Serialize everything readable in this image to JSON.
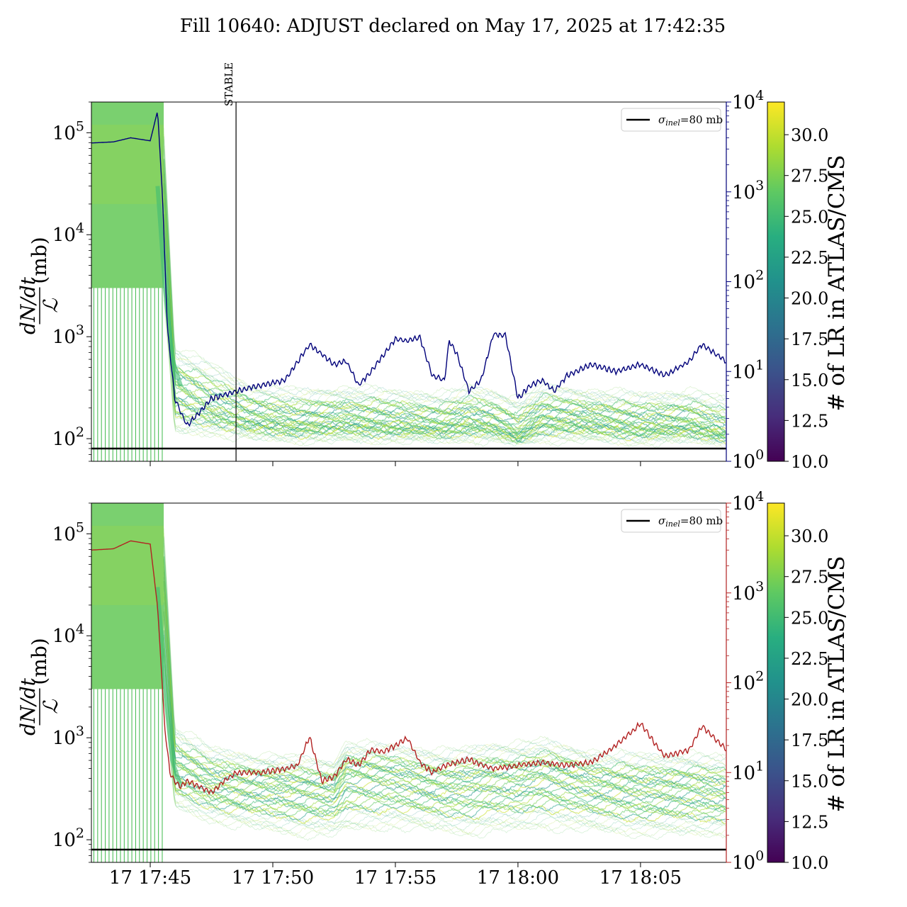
{
  "title": "Fill 10640: ADJUST declared on May 17, 2025 at 17:42:35",
  "colors": {
    "top_rate_line": "#00007a",
    "bottom_rate_line": "#b22222",
    "sigma_line": "#000000",
    "band_base": "#5cc85a",
    "band_accent": "#c8e020"
  },
  "chart_data": [
    {
      "type": "line",
      "panel": "top",
      "ylabel": "dN/dt / ℒ (mb)",
      "yscale": "log",
      "ylim": [
        60,
        200000
      ],
      "y_ticks": [
        "10^2",
        "10^3",
        "10^4",
        "10^5"
      ],
      "y2scale": "log",
      "y2lim": [
        1,
        10000
      ],
      "y2_ticks": [
        "10^0",
        "10^1",
        "10^2",
        "10^3",
        "10^4"
      ],
      "y2_color": "#00007a",
      "x_ticks": [
        "17 17:45",
        "17 17:50",
        "17 17:55",
        "17 18:00",
        "17 18:05"
      ],
      "xlim_minutes": [
        -2.4,
        23.5
      ],
      "x_tick_minutes": [
        0,
        5,
        10,
        15,
        20
      ],
      "annotation": {
        "text": "STABLE",
        "x_minutes": 3.5
      },
      "legend": {
        "label": "σ_inel=80 mb",
        "position": "top-right"
      },
      "sigma_inel_mb": 80,
      "series": [
        {
          "axis": "right",
          "x_minutes": [
            -2.4,
            -1.5,
            -0.8,
            0.0,
            0.3,
            0.5,
            0.7,
            1.0,
            1.5,
            2.0,
            2.5,
            3.5,
            4.5,
            5.5,
            6.5,
            7.5,
            8.0,
            8.3,
            8.5,
            9.0,
            9.5,
            10.0,
            10.5,
            11.0,
            11.5,
            12.0,
            12.2,
            12.5,
            13.0,
            13.5,
            14.0,
            14.5,
            15.0,
            15.5,
            16.0,
            16.5,
            17.0,
            18.0,
            19.0,
            20.0,
            21.0,
            22.0,
            22.5,
            23.5
          ],
          "values": [
            3500,
            3600,
            4000,
            3700,
            8000,
            900,
            30,
            5,
            2.5,
            3.5,
            5,
            6,
            7,
            8,
            20,
            12,
            13,
            9,
            7,
            10,
            15,
            23,
            22,
            24,
            9,
            8,
            22,
            16,
            6,
            8,
            26,
            25,
            5,
            7,
            8,
            6,
            9,
            12,
            10,
            12,
            9,
            13,
            20,
            13
          ]
        }
      ],
      "bands": {
        "colorbar_label": "# of LR in ATLAS/CMS",
        "colorbar_range": [
          10,
          32
        ],
        "colorbar_ticks": [
          "10.0",
          "12.5",
          "15.0",
          "17.5",
          "20.0",
          "22.5",
          "25.0",
          "27.5",
          "30.0"
        ],
        "x_minutes": [
          -2.4,
          0.5,
          1.0,
          2.5,
          4.0,
          6.0,
          8.0,
          10.0,
          12.0,
          13.0,
          14.0,
          15.0,
          16.0,
          18.0,
          20.0,
          22.0,
          23.5
        ],
        "median": [
          40000,
          40000,
          300,
          200,
          160,
          140,
          150,
          140,
          135,
          150,
          140,
          110,
          160,
          150,
          135,
          140,
          115
        ],
        "low": [
          3000,
          3000,
          110,
          110,
          100,
          95,
          95,
          95,
          95,
          95,
          95,
          90,
          95,
          95,
          90,
          95,
          90
        ],
        "high": [
          200000,
          200000,
          800,
          550,
          350,
          300,
          320,
          300,
          280,
          330,
          300,
          250,
          330,
          300,
          280,
          300,
          250
        ]
      }
    },
    {
      "type": "line",
      "panel": "bottom",
      "ylabel": "dN/dt / ℒ (mb)",
      "yscale": "log",
      "ylim": [
        60,
        200000
      ],
      "y_ticks": [
        "10^2",
        "10^3",
        "10^4",
        "10^5"
      ],
      "y2scale": "log",
      "y2lim": [
        1,
        10000
      ],
      "y2_ticks": [
        "10^0",
        "10^1",
        "10^2",
        "10^3",
        "10^4"
      ],
      "y2_color": "#b22222",
      "x_ticks": [
        "17 17:45",
        "17 17:50",
        "17 17:55",
        "17 18:00",
        "17 18:05"
      ],
      "xlim_minutes": [
        -2.4,
        23.5
      ],
      "x_tick_minutes": [
        0,
        5,
        10,
        15,
        20
      ],
      "legend": {
        "label": "σ_inel=80 mb",
        "position": "top-right"
      },
      "sigma_inel_mb": 80,
      "series": [
        {
          "axis": "right",
          "x_minutes": [
            -2.4,
            -1.5,
            -0.8,
            0.0,
            0.3,
            0.6,
            0.8,
            1.0,
            1.2,
            1.5,
            2.0,
            2.5,
            3.0,
            3.5,
            4.5,
            5.5,
            6.0,
            6.5,
            7.0,
            7.5,
            8.0,
            8.5,
            9.0,
            9.5,
            10.0,
            10.5,
            11.0,
            11.5,
            12.0,
            13.0,
            14.0,
            15.0,
            16.0,
            17.0,
            18.0,
            19.0,
            20.0,
            21.0,
            22.0,
            22.5,
            23.5
          ],
          "values": [
            3000,
            3100,
            3800,
            3500,
            700,
            30,
            10,
            8,
            7,
            8,
            7,
            6,
            8,
            10,
            10,
            11,
            12,
            25,
            8,
            9,
            14,
            12,
            18,
            17,
            20,
            24,
            13,
            10,
            12,
            14,
            11,
            12,
            13,
            12,
            13,
            20,
            35,
            15,
            18,
            33,
            18
          ]
        }
      ],
      "bands": {
        "colorbar_label": "# of LR in ATLAS/CMS",
        "colorbar_range": [
          10,
          32
        ],
        "colorbar_ticks": [
          "10.0",
          "12.5",
          "15.0",
          "17.5",
          "20.0",
          "22.5",
          "25.0",
          "27.5",
          "30.0"
        ],
        "x_minutes": [
          -2.4,
          0.5,
          1.0,
          2.5,
          4.0,
          6.0,
          7.5,
          8.0,
          10.0,
          12.0,
          13.0,
          14.0,
          15.0,
          16.0,
          18.0,
          20.0,
          22.0,
          23.5
        ],
        "median": [
          40000,
          40000,
          500,
          350,
          320,
          300,
          280,
          420,
          380,
          320,
          330,
          360,
          360,
          420,
          330,
          300,
          300,
          280
        ],
        "low": [
          3000,
          3000,
          200,
          150,
          130,
          110,
          110,
          120,
          130,
          120,
          110,
          120,
          120,
          130,
          120,
          110,
          110,
          110
        ],
        "high": [
          200000,
          200000,
          1300,
          800,
          700,
          650,
          600,
          900,
          850,
          750,
          800,
          900,
          900,
          950,
          750,
          700,
          700,
          650
        ]
      }
    }
  ]
}
